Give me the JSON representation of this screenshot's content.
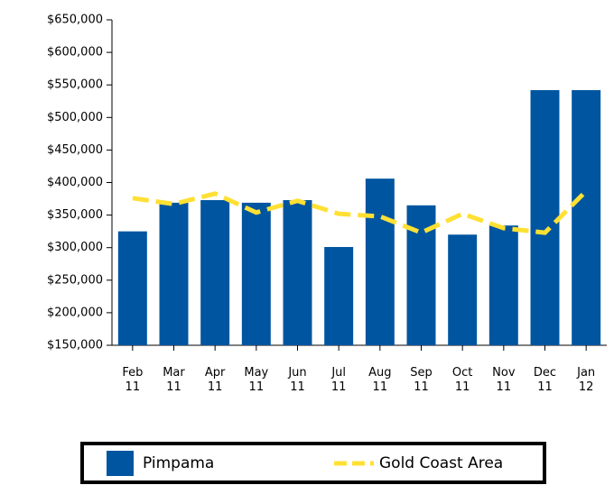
{
  "chart_data": {
    "type": "bar",
    "categories": [
      "Feb 11",
      "Mar 11",
      "Apr 11",
      "May 11",
      "Jun 11",
      "Jul 11",
      "Aug 11",
      "Sep 11",
      "Oct 11",
      "Nov 11",
      "Dec 11",
      "Jan 12"
    ],
    "series": [
      {
        "name": "Pimpama",
        "type": "bar",
        "color": "#0055a0",
        "values": [
          325000,
          369000,
          373000,
          369000,
          373000,
          301000,
          406000,
          365000,
          320000,
          334000,
          542000,
          542000
        ]
      },
      {
        "name": "Gold Coast Area",
        "type": "line",
        "color": "#ffe033",
        "values": [
          376000,
          367000,
          383000,
          354000,
          372000,
          352000,
          348000,
          323000,
          352000,
          330000,
          323000,
          387000
        ]
      }
    ],
    "ylim": [
      150000,
      650000
    ],
    "yticks": [
      {
        "value": 150000,
        "label": "$150,000"
      },
      {
        "value": 200000,
        "label": "$200,000"
      },
      {
        "value": 250000,
        "label": "$250,000"
      },
      {
        "value": 300000,
        "label": "$300,000"
      },
      {
        "value": 350000,
        "label": "$350,000"
      },
      {
        "value": 400000,
        "label": "$400,000"
      },
      {
        "value": 450000,
        "label": "$450,000"
      },
      {
        "value": 500000,
        "label": "$500,000"
      },
      {
        "value": 550000,
        "label": "$550,000"
      },
      {
        "value": 600000,
        "label": "$600,000"
      },
      {
        "value": 650000,
        "label": "$650,000"
      }
    ],
    "legend": "bottom"
  }
}
